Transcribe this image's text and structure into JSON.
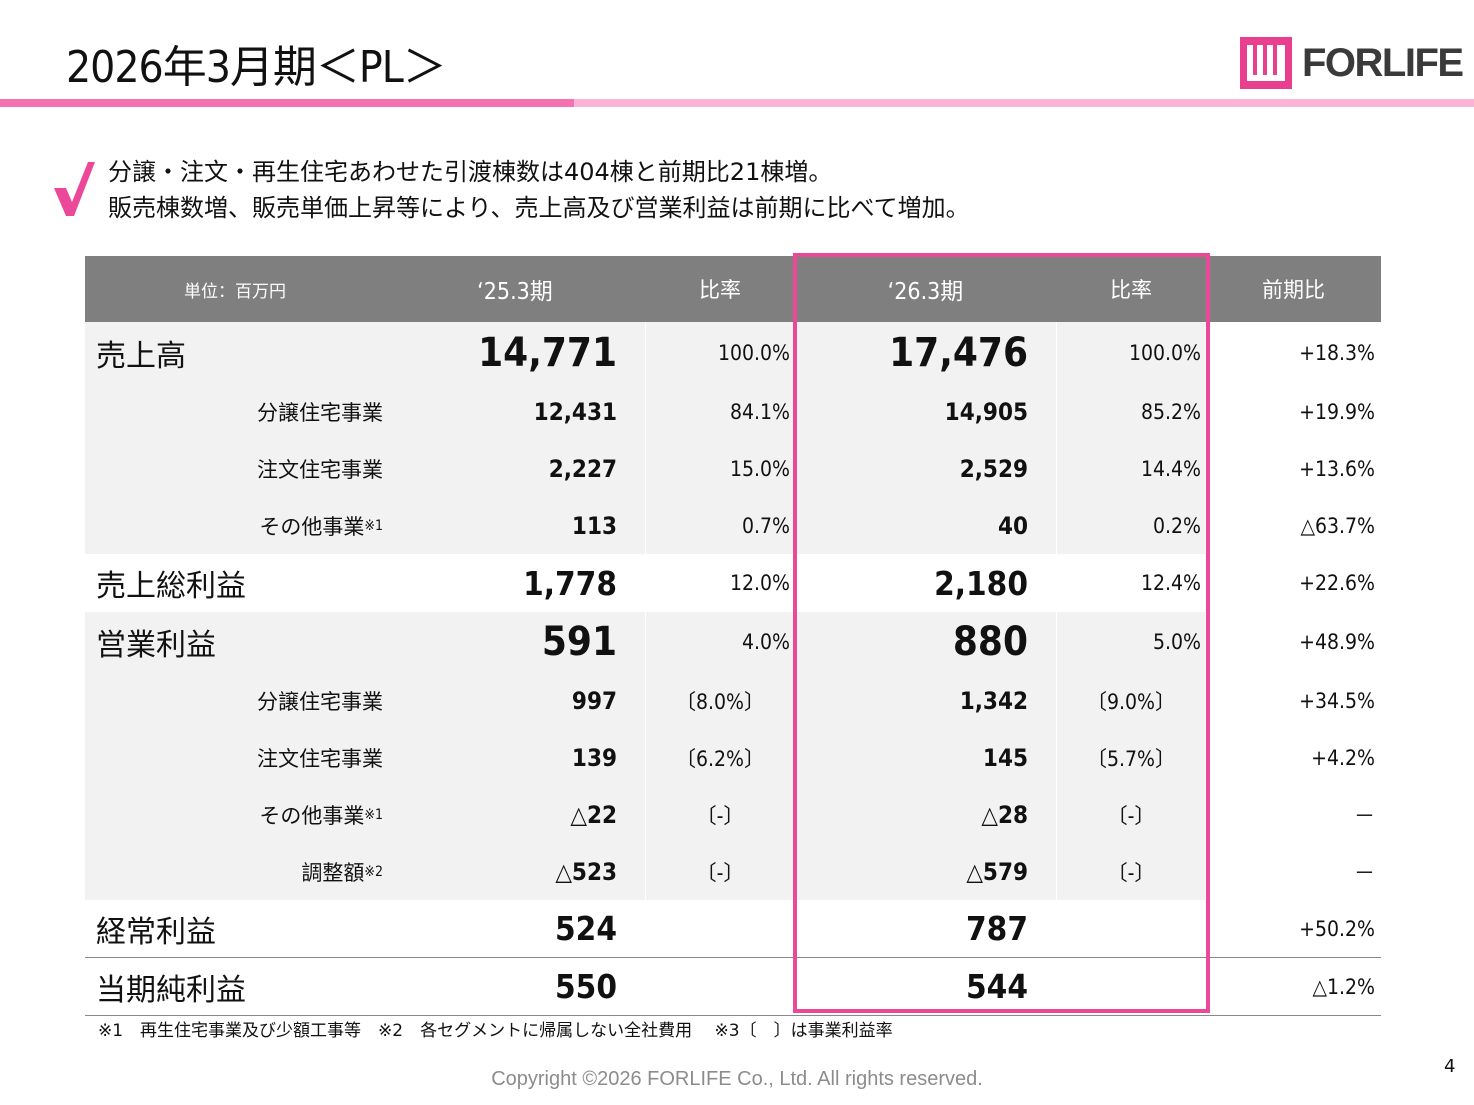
{
  "title": "2026年3月期＜PL＞",
  "logo": {
    "text": "FORLIFE",
    "mark_color": "#e8408f"
  },
  "summary": {
    "check_icon": "checkmark-icon",
    "line1": "分譲・注文・再生住宅あわせた引渡棟数は404棟と前期比21棟増。",
    "line2": "販売棟数増、販売単価上昇等により、売上高及び営業利益は前期に比べて増加。"
  },
  "table": {
    "headers": {
      "unit": "単位：百万円",
      "fy25": "‘25.3期",
      "ratio25": "比率",
      "fy26": "‘26.3期",
      "ratio26": "比率",
      "yoy": "前期比"
    },
    "rows": [
      {
        "label": "売上高",
        "note": "",
        "fy25": "14,771",
        "ratio25": "100.0%",
        "fy26": "17,476",
        "ratio26": "100.0%",
        "yoy": "+18.3%"
      },
      {
        "label": "分譲住宅事業",
        "note": "",
        "fy25": "12,431",
        "ratio25": "84.1%",
        "fy26": "14,905",
        "ratio26": "85.2%",
        "yoy": "+19.9%"
      },
      {
        "label": "注文住宅事業",
        "note": "",
        "fy25": "2,227",
        "ratio25": "15.0%",
        "fy26": "2,529",
        "ratio26": "14.4%",
        "yoy": "+13.6%"
      },
      {
        "label": "その他事業",
        "note": "※1",
        "fy25": "113",
        "ratio25": "0.7%",
        "fy26": "40",
        "ratio26": "0.2%",
        "yoy": "△63.7%"
      },
      {
        "label": "売上総利益",
        "note": "",
        "fy25": "1,778",
        "ratio25": "12.0%",
        "fy26": "2,180",
        "ratio26": "12.4%",
        "yoy": "+22.6%"
      },
      {
        "label": "営業利益",
        "note": "",
        "fy25": "591",
        "ratio25": "4.0%",
        "fy26": "880",
        "ratio26": "5.0%",
        "yoy": "+48.9%"
      },
      {
        "label": "分譲住宅事業",
        "note": "",
        "fy25": "997",
        "ratio25": "〔8.0%〕",
        "fy26": "1,342",
        "ratio26": "〔9.0%〕",
        "yoy": "+34.5%"
      },
      {
        "label": "注文住宅事業",
        "note": "",
        "fy25": "139",
        "ratio25": "〔6.2%〕",
        "fy26": "145",
        "ratio26": "〔5.7%〕",
        "yoy": "+4.2%"
      },
      {
        "label": "その他事業",
        "note": "※1",
        "fy25": "△22",
        "ratio25": "〔-〕",
        "fy26": "△28",
        "ratio26": "〔-〕",
        "yoy": "－"
      },
      {
        "label": "調整額",
        "note": "※2",
        "fy25": "△523",
        "ratio25": "〔-〕",
        "fy26": "△579",
        "ratio26": "〔-〕",
        "yoy": "－"
      },
      {
        "label": "経常利益",
        "note": "",
        "fy25": "524",
        "ratio25": "",
        "fy26": "787",
        "ratio26": "",
        "yoy": "+50.2%"
      },
      {
        "label": "当期純利益",
        "note": "",
        "fy25": "550",
        "ratio25": "",
        "fy26": "544",
        "ratio26": "",
        "yoy": "△1.2%"
      }
    ]
  },
  "footnote": "※1　再生住宅事業及び少額工事等　※2　各セグメントに帰属しない全社費用　 ※3〔　〕は事業利益率",
  "copyright": "Copyright ©2026 FORLIFE Co., Ltd. All rights reserved.",
  "page_number": "4",
  "colors": {
    "accent": "#ec4899",
    "header_bg": "#7f7f7f",
    "row_bg": "#f2f2f2"
  }
}
